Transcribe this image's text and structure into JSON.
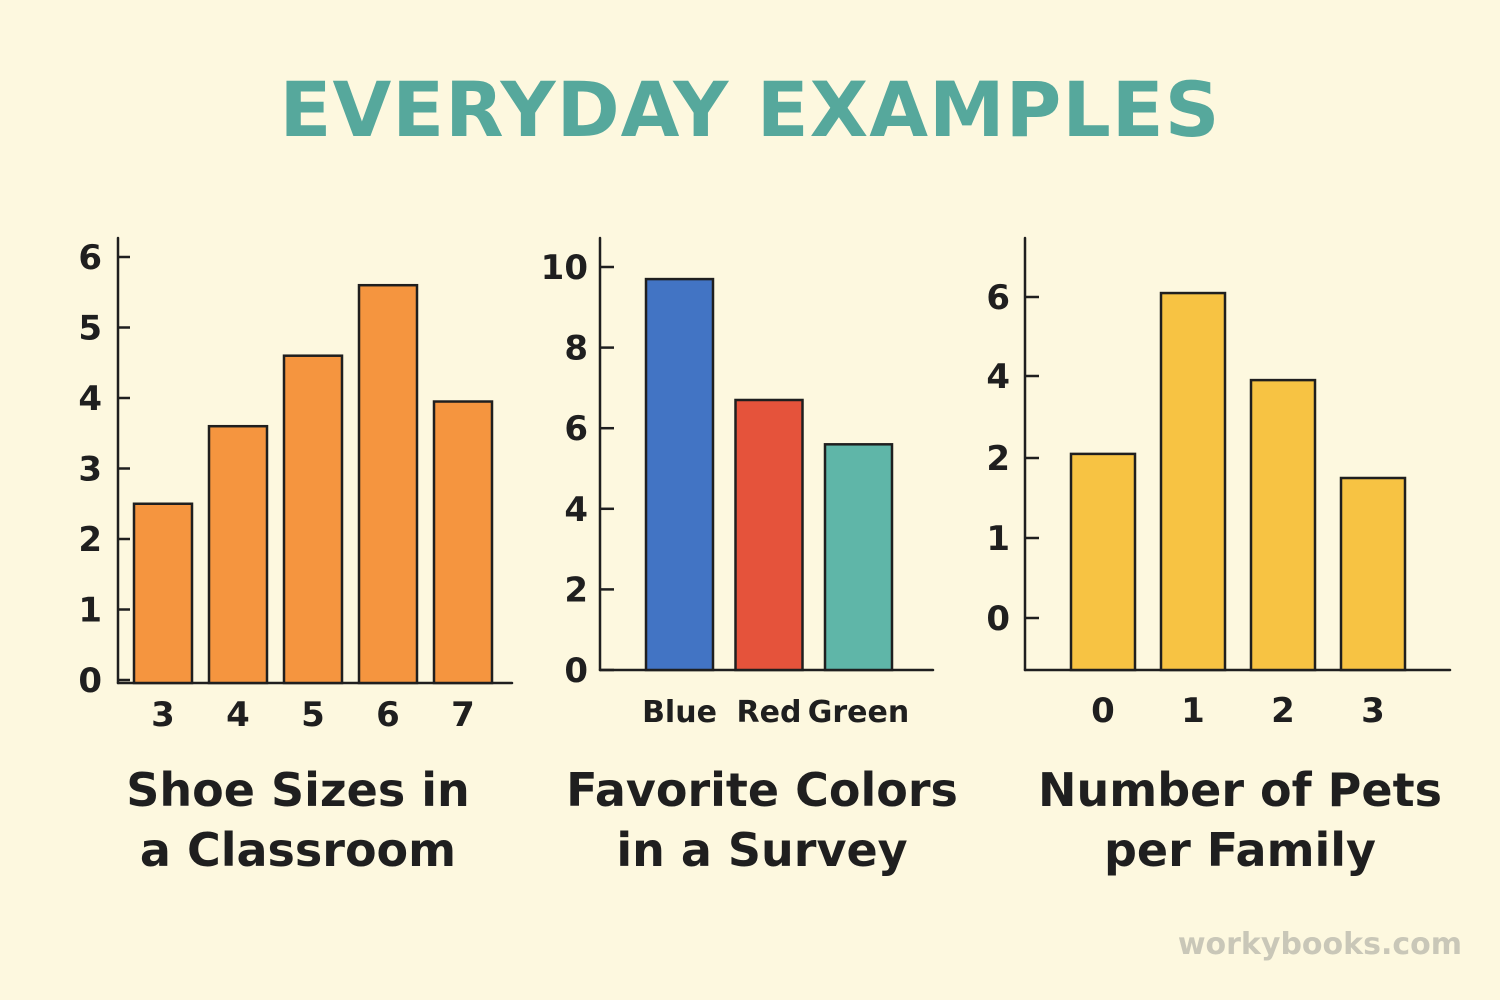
{
  "page": {
    "title": "EVERYDAY EXAMPLES",
    "watermark": "workybooks.com"
  },
  "colors": {
    "background": "#fdf8df",
    "title": "#56a89c",
    "outline": "#1f1f1f"
  },
  "chart_data": [
    {
      "type": "bar",
      "title": "Shoe Sizes in a Classroom",
      "title_lines": [
        "Shoe Sizes in",
        "a Classroom"
      ],
      "categories": [
        "3",
        "4",
        "5",
        "6",
        "7"
      ],
      "values": [
        2.5,
        3.6,
        4.6,
        5.6,
        3.95
      ],
      "bar_colors": [
        "#f5953f",
        "#f5953f",
        "#f5953f",
        "#f5953f",
        "#f5953f"
      ],
      "yticks": [
        0,
        1,
        2,
        3,
        4,
        5,
        6
      ],
      "ylim": [
        0,
        6
      ],
      "xlabel": "",
      "ylabel": "",
      "grid": false,
      "legend": "none"
    },
    {
      "type": "bar",
      "title": "Favorite Colors in a Survey",
      "title_lines": [
        "Favorite Colors",
        "in a Survey"
      ],
      "categories": [
        "Blue",
        "Red",
        "Green"
      ],
      "values": [
        9.7,
        6.7,
        5.6
      ],
      "bar_colors": [
        "#4274c4",
        "#e5533b",
        "#5fb6a8"
      ],
      "yticks": [
        0,
        2,
        4,
        6,
        8,
        10
      ],
      "ylim": [
        0,
        10
      ],
      "xlabel": "",
      "ylabel": "",
      "grid": false,
      "legend": "none"
    },
    {
      "type": "bar",
      "title": "Number of Pets per Family",
      "title_lines": [
        "Number of Pets",
        "per Family"
      ],
      "categories": [
        "0",
        "1",
        "2",
        "3"
      ],
      "values": [
        2.1,
        6.1,
        3.9,
        1.75
      ],
      "bar_colors": [
        "#f7c343",
        "#f7c343",
        "#f7c343",
        "#f7c343"
      ],
      "yticks": [
        0,
        1,
        2,
        4,
        6
      ],
      "ytick_values": [
        0,
        1,
        2,
        4,
        6
      ],
      "ylim": [
        0,
        6
      ],
      "xlabel": "",
      "ylabel": "",
      "grid": false,
      "legend": "none"
    }
  ]
}
